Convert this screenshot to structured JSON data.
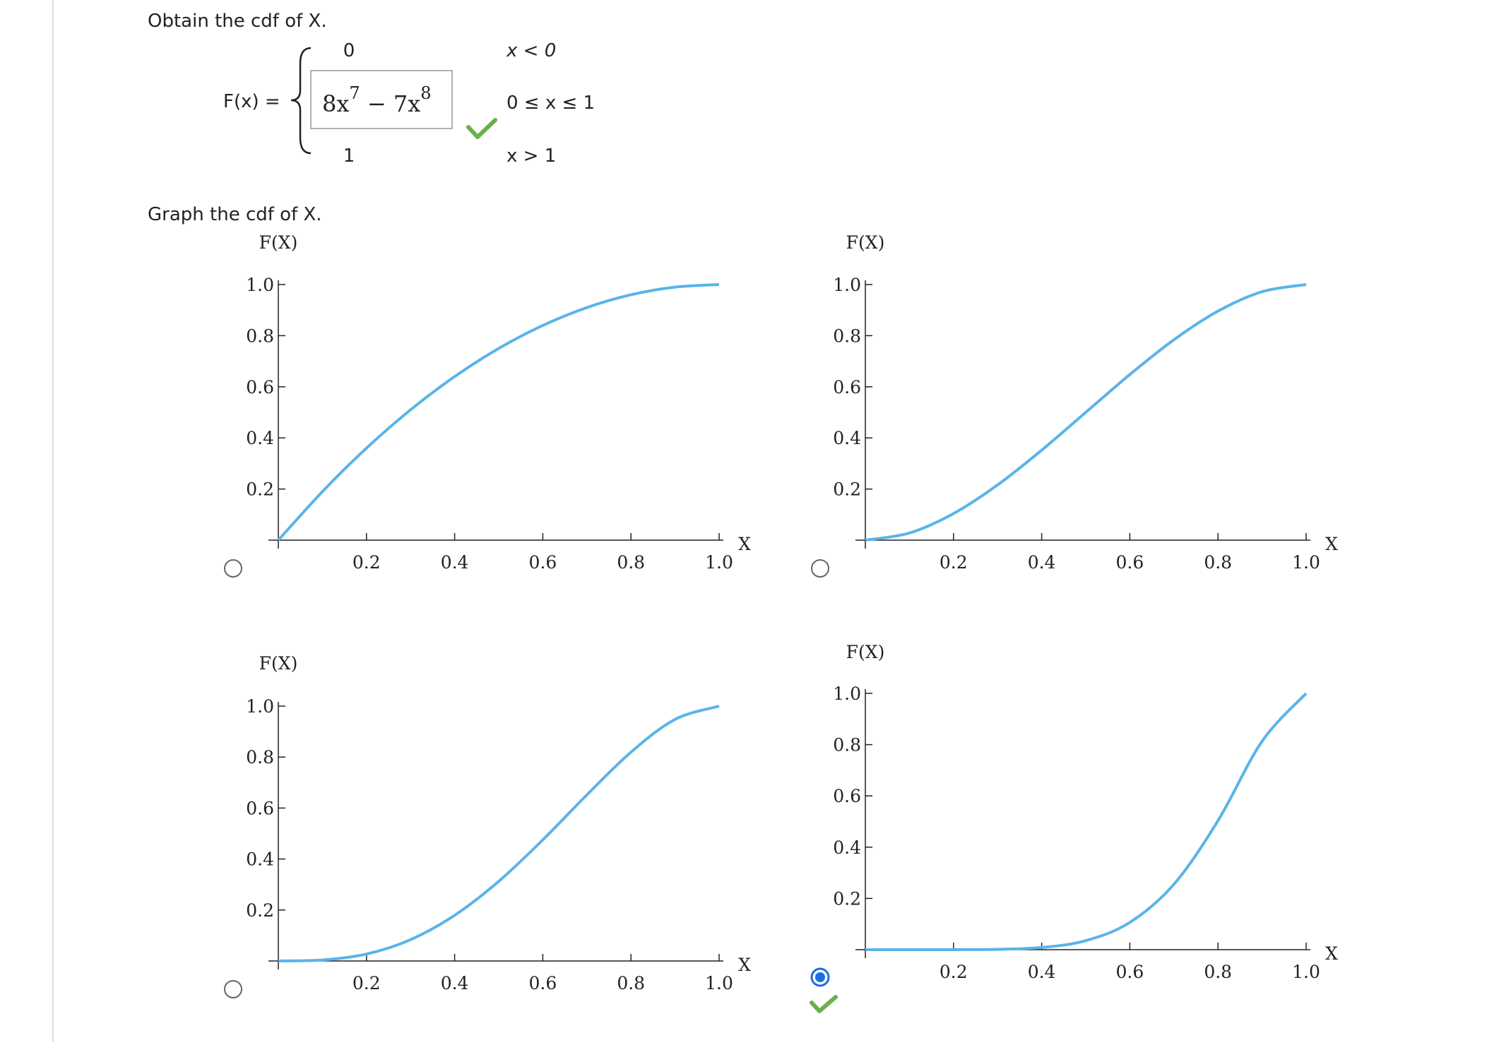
{
  "question": "Obtain the cdf of X.",
  "formula": {
    "lhs": "F(x) =",
    "cases": [
      {
        "value": "0",
        "condition": "x < 0"
      },
      {
        "value_parts": [
          "8x",
          "7",
          " − 7x",
          "8"
        ],
        "condition": "0 ≤ x ≤ 1"
      },
      {
        "value": "1",
        "condition": "x > 1"
      }
    ]
  },
  "graph_prompt": "Graph the cdf of X.",
  "chart_data": [
    {
      "type": "line",
      "y_label": "F(X)",
      "x_label": "X",
      "color": "#5ab4e8",
      "x": [
        0,
        0.1,
        0.2,
        0.3,
        0.4,
        0.5,
        0.6,
        0.7,
        0.8,
        0.9,
        1
      ],
      "values": [
        0,
        0.19,
        0.36,
        0.51,
        0.64,
        0.75,
        0.84,
        0.91,
        0.96,
        0.99,
        1
      ],
      "xlim": [
        0,
        1
      ],
      "ylim": [
        0,
        1
      ],
      "xticks": [
        0.2,
        0.4,
        0.6,
        0.8,
        {
          "value": 1,
          "label": "1.0"
        }
      ],
      "yticks": [
        0.2,
        0.4,
        0.6,
        0.8,
        {
          "value": 1,
          "label": "1.0"
        }
      ],
      "selected": false
    },
    {
      "type": "line",
      "y_label": "F(X)",
      "x_label": "X",
      "color": "#5ab4e8",
      "x": [
        0,
        0.1,
        0.2,
        0.3,
        0.4,
        0.5,
        0.6,
        0.7,
        0.8,
        0.9,
        1
      ],
      "values": [
        0,
        0.028,
        0.104,
        0.216,
        0.352,
        0.5,
        0.648,
        0.784,
        0.896,
        0.972,
        1
      ],
      "xlim": [
        0,
        1
      ],
      "ylim": [
        0,
        1
      ],
      "xticks": [
        0.2,
        0.4,
        0.6,
        0.8,
        {
          "value": 1,
          "label": "1.0"
        }
      ],
      "yticks": [
        0.2,
        0.4,
        0.6,
        0.8,
        {
          "value": 1,
          "label": "1.0"
        }
      ],
      "selected": false
    },
    {
      "type": "line",
      "y_label": "F(X)",
      "x_label": "X",
      "color": "#5ab4e8",
      "x": [
        0,
        0.1,
        0.2,
        0.3,
        0.4,
        0.5,
        0.6,
        0.7,
        0.8,
        0.9,
        1
      ],
      "values": [
        0,
        0.0037,
        0.0272,
        0.0837,
        0.1792,
        0.3125,
        0.4752,
        0.6517,
        0.8192,
        0.9477,
        1
      ],
      "xlim": [
        0,
        1
      ],
      "ylim": [
        0,
        1
      ],
      "xticks": [
        0.2,
        0.4,
        0.6,
        0.8,
        {
          "value": 1,
          "label": "1.0"
        }
      ],
      "yticks": [
        0.2,
        0.4,
        0.6,
        0.8,
        {
          "value": 1,
          "label": "1.0"
        }
      ],
      "selected": false
    },
    {
      "type": "line",
      "y_label": "F(X)",
      "x_label": "X",
      "color": "#5ab4e8",
      "x": [
        0,
        0.1,
        0.2,
        0.3,
        0.4,
        0.5,
        0.6,
        0.7,
        0.8,
        0.9,
        1
      ],
      "values": [
        0,
        0,
        0.0001,
        0.0013,
        0.0085,
        0.0352,
        0.1064,
        0.2553,
        0.5033,
        0.8131,
        1
      ],
      "xlim": [
        0,
        1
      ],
      "ylim": [
        0,
        1
      ],
      "xticks": [
        0.2,
        0.4,
        0.6,
        0.8,
        {
          "value": 1,
          "label": "1.0"
        }
      ],
      "yticks": [
        0.2,
        0.4,
        0.6,
        0.8,
        {
          "value": 1,
          "label": "1.0"
        }
      ],
      "selected": true
    }
  ]
}
